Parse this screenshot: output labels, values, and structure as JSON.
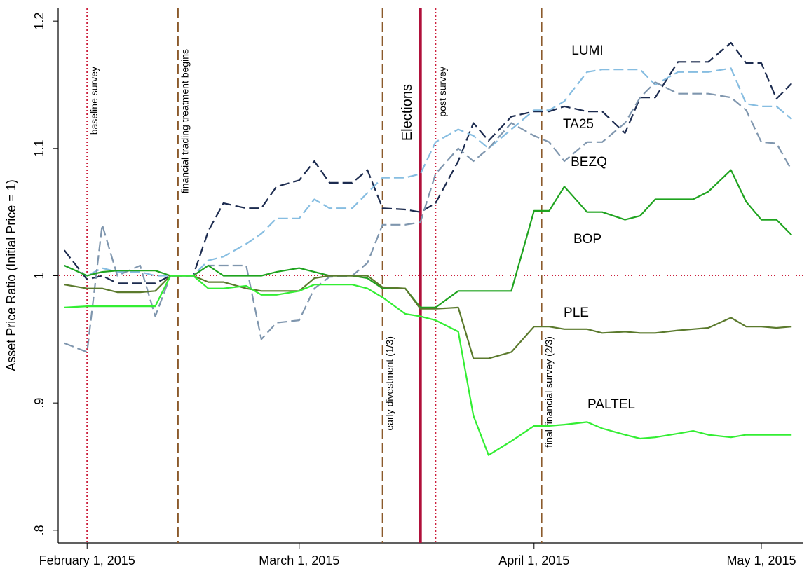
{
  "chart_data": {
    "type": "line",
    "y_label": "Asset Price Ratio (Initial Price = 1)",
    "x": [
      "2015-01-29",
      "2015-02-01",
      "2015-02-03",
      "2015-02-05",
      "2015-02-08",
      "2015-02-10",
      "2015-02-12",
      "2015-02-15",
      "2015-02-17",
      "2015-02-19",
      "2015-02-22",
      "2015-02-24",
      "2015-02-26",
      "2015-03-01",
      "2015-03-03",
      "2015-03-05",
      "2015-03-08",
      "2015-03-10",
      "2015-03-12",
      "2015-03-15",
      "2015-03-17",
      "2015-03-19",
      "2015-03-22",
      "2015-03-24",
      "2015-03-26",
      "2015-03-29",
      "2015-04-01",
      "2015-04-03",
      "2015-04-05",
      "2015-04-08",
      "2015-04-10",
      "2015-04-13",
      "2015-04-15",
      "2015-04-17",
      "2015-04-20",
      "2015-04-22",
      "2015-04-24",
      "2015-04-27",
      "2015-04-29",
      "2015-05-01",
      "2015-05-03",
      "2015-05-05"
    ],
    "xlim": [
      "2015-01-28",
      "2015-05-06"
    ],
    "xticks": [
      {
        "value": "2015-02-01",
        "label": "February 1, 2015"
      },
      {
        "value": "2015-03-01",
        "label": "March 1, 2015"
      },
      {
        "value": "2015-04-01",
        "label": "April 1, 2015"
      },
      {
        "value": "2015-05-01",
        "label": "May 1, 2015"
      }
    ],
    "ylim": [
      0.79,
      1.21
    ],
    "yticks": [
      {
        "value": 0.8,
        "label": ".8"
      },
      {
        "value": 0.9,
        "label": ".9"
      },
      1,
      1.1,
      1.2
    ],
    "hline": 1,
    "series": [
      {
        "name": "LUMI",
        "color": "#1c2b4f",
        "style": "dashed",
        "values": [
          1.02,
          0.997,
          1.0,
          0.994,
          0.994,
          0.994,
          1.0,
          1.0,
          1.035,
          1.057,
          1.053,
          1.053,
          1.07,
          1.075,
          1.09,
          1.073,
          1.073,
          1.083,
          1.053,
          1.052,
          1.05,
          1.057,
          1.09,
          1.12,
          1.106,
          1.125,
          1.129,
          1.129,
          1.133,
          1.129,
          1.129,
          1.112,
          1.14,
          1.14,
          1.168,
          1.168,
          1.168,
          1.183,
          1.167,
          1.167,
          1.139,
          1.151
        ]
      },
      {
        "name": "TA25",
        "color": "#86bde1",
        "style": "dashed",
        "values": [
          1.008,
          1.0,
          1.006,
          1.003,
          1.003,
          1.0,
          1.0,
          1.0,
          1.012,
          1.015,
          1.025,
          1.033,
          1.045,
          1.045,
          1.06,
          1.053,
          1.053,
          1.065,
          1.077,
          1.077,
          1.08,
          1.105,
          1.115,
          1.11,
          1.1,
          1.115,
          1.13,
          1.13,
          1.137,
          1.16,
          1.162,
          1.162,
          1.162,
          1.15,
          1.16,
          1.16,
          1.16,
          1.163,
          1.135,
          1.133,
          1.133,
          1.123
        ]
      },
      {
        "name": "BEZQ",
        "color": "#7f96ae",
        "style": "dashed",
        "values": [
          0.947,
          0.94,
          1.04,
          1.0,
          1.008,
          0.968,
          1.0,
          1.0,
          1.008,
          1.008,
          1.008,
          0.95,
          0.963,
          0.965,
          0.99,
          0.999,
          1.0,
          1.01,
          1.04,
          1.04,
          1.042,
          1.08,
          1.1,
          1.09,
          1.1,
          1.12,
          1.11,
          1.105,
          1.09,
          1.105,
          1.105,
          1.12,
          1.14,
          1.152,
          1.143,
          1.143,
          1.143,
          1.14,
          1.13,
          1.105,
          1.104,
          1.083
        ]
      },
      {
        "name": "BOP",
        "color": "#1fa31f",
        "style": "solid",
        "values": [
          1.008,
          1.0,
          1.003,
          1.004,
          1.004,
          1.004,
          1.0,
          1.0,
          1.008,
          1.0,
          1.0,
          1.0,
          1.003,
          1.006,
          1.003,
          1.0,
          1.0,
          0.998,
          0.99,
          0.99,
          0.975,
          0.975,
          0.988,
          0.988,
          0.988,
          0.988,
          1.051,
          1.051,
          1.07,
          1.05,
          1.05,
          1.044,
          1.047,
          1.06,
          1.06,
          1.06,
          1.066,
          1.083,
          1.058,
          1.044,
          1.044,
          1.032
        ]
      },
      {
        "name": "PLE",
        "color": "#5b7a2d",
        "style": "solid",
        "values": [
          0.993,
          0.99,
          0.99,
          0.987,
          0.987,
          0.988,
          1.0,
          1.0,
          0.995,
          0.995,
          0.99,
          0.988,
          0.988,
          0.988,
          0.998,
          1.0,
          1.0,
          1.0,
          0.991,
          0.99,
          0.974,
          0.974,
          0.975,
          0.935,
          0.935,
          0.94,
          0.96,
          0.96,
          0.958,
          0.958,
          0.955,
          0.956,
          0.955,
          0.955,
          0.957,
          0.958,
          0.959,
          0.967,
          0.96,
          0.96,
          0.959,
          0.96
        ]
      },
      {
        "name": "PALTEL",
        "color": "#33ee33",
        "style": "solid",
        "values": [
          0.975,
          0.976,
          0.976,
          0.976,
          0.976,
          0.976,
          1.0,
          1.0,
          0.99,
          0.99,
          0.992,
          0.985,
          0.985,
          0.988,
          0.993,
          0.993,
          0.993,
          0.99,
          0.983,
          0.97,
          0.968,
          0.965,
          0.956,
          0.89,
          0.859,
          0.87,
          0.882,
          0.882,
          0.883,
          0.885,
          0.88,
          0.875,
          0.872,
          0.873,
          0.876,
          0.878,
          0.875,
          0.873,
          0.875,
          0.875,
          0.875,
          0.875
        ]
      }
    ],
    "vlines": [
      {
        "x": "2015-02-01",
        "label": "baseline survey",
        "color": "#cc1f3c",
        "style": "dotted"
      },
      {
        "x": "2015-02-13",
        "label": "financial trading treatment begins",
        "color": "#8b5a2b",
        "style": "dashed"
      },
      {
        "x": "2015-03-12",
        "label": "early divestment (1/3)",
        "color": "#8b5a2b",
        "style": "dashed"
      },
      {
        "x": "2015-03-17",
        "label": "Elections",
        "color": "#b0103a",
        "style": "solid"
      },
      {
        "x": "2015-03-19",
        "label": "post survey",
        "color": "#cc1f3c",
        "style": "dotted"
      },
      {
        "x": "2015-04-02",
        "label": "final financial survey (2/3)",
        "color": "#8b5a2b",
        "style": "dashed"
      }
    ]
  }
}
